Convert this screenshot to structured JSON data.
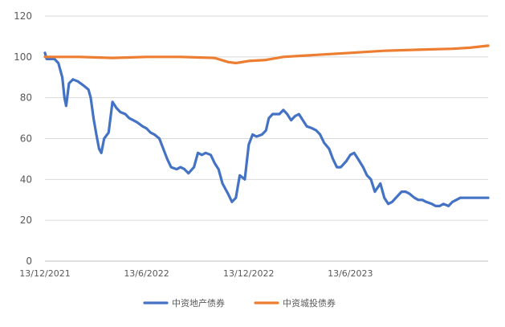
{
  "chart_data": {
    "type": "line",
    "title": "",
    "xlabel": "",
    "ylabel": "",
    "x_ticks": [
      "13/12/2021",
      "13/6/2022",
      "13/12/2022",
      "13/6/2023"
    ],
    "x_range": [
      "2021-12-13",
      "2024-02-15"
    ],
    "y_ticks": [
      0,
      20,
      40,
      60,
      80,
      100,
      120
    ],
    "ylim": [
      0,
      120
    ],
    "grid": "horizontal",
    "legend_position": "bottom",
    "series": [
      {
        "name": "中资地产债券",
        "color": "#4472C4",
        "points": [
          [
            "2021-12-13",
            102
          ],
          [
            "2021-12-16",
            99
          ],
          [
            "2021-12-30",
            99
          ],
          [
            "2022-01-06",
            97
          ],
          [
            "2022-01-13",
            90
          ],
          [
            "2022-01-17",
            80
          ],
          [
            "2022-01-20",
            76
          ],
          [
            "2022-01-25",
            87
          ],
          [
            "2022-02-01",
            89
          ],
          [
            "2022-02-10",
            88
          ],
          [
            "2022-02-20",
            86
          ],
          [
            "2022-03-01",
            84
          ],
          [
            "2022-03-05",
            80
          ],
          [
            "2022-03-10",
            70
          ],
          [
            "2022-03-15",
            62
          ],
          [
            "2022-03-20",
            55
          ],
          [
            "2022-03-24",
            53
          ],
          [
            "2022-03-29",
            60
          ],
          [
            "2022-04-06",
            63
          ],
          [
            "2022-04-13",
            78
          ],
          [
            "2022-04-20",
            75
          ],
          [
            "2022-04-27",
            73
          ],
          [
            "2022-05-06",
            72
          ],
          [
            "2022-05-13",
            70
          ],
          [
            "2022-05-20",
            69
          ],
          [
            "2022-05-27",
            68
          ],
          [
            "2022-06-06",
            66
          ],
          [
            "2022-06-13",
            65
          ],
          [
            "2022-06-20",
            63
          ],
          [
            "2022-06-27",
            62
          ],
          [
            "2022-07-06",
            60
          ],
          [
            "2022-07-13",
            55
          ],
          [
            "2022-07-20",
            50
          ],
          [
            "2022-07-27",
            46
          ],
          [
            "2022-08-06",
            45
          ],
          [
            "2022-08-13",
            46
          ],
          [
            "2022-08-20",
            45
          ],
          [
            "2022-08-27",
            43
          ],
          [
            "2022-09-06",
            46
          ],
          [
            "2022-09-13",
            53
          ],
          [
            "2022-09-20",
            52
          ],
          [
            "2022-09-27",
            53
          ],
          [
            "2022-10-06",
            52
          ],
          [
            "2022-10-13",
            48
          ],
          [
            "2022-10-20",
            45
          ],
          [
            "2022-10-27",
            38
          ],
          [
            "2022-11-06",
            33
          ],
          [
            "2022-11-13",
            29
          ],
          [
            "2022-11-20",
            31
          ],
          [
            "2022-11-27",
            42
          ],
          [
            "2022-12-06",
            40
          ],
          [
            "2022-12-13",
            57
          ],
          [
            "2022-12-20",
            62
          ],
          [
            "2022-12-27",
            61
          ],
          [
            "2023-01-06",
            62
          ],
          [
            "2023-01-13",
            64
          ],
          [
            "2023-01-18",
            70
          ],
          [
            "2023-01-25",
            72
          ],
          [
            "2023-02-06",
            72
          ],
          [
            "2023-02-13",
            74
          ],
          [
            "2023-02-20",
            72
          ],
          [
            "2023-02-27",
            69
          ],
          [
            "2023-03-06",
            71
          ],
          [
            "2023-03-13",
            72
          ],
          [
            "2023-03-20",
            69
          ],
          [
            "2023-03-27",
            66
          ],
          [
            "2023-04-06",
            65
          ],
          [
            "2023-04-13",
            64
          ],
          [
            "2023-04-20",
            62
          ],
          [
            "2023-04-27",
            58
          ],
          [
            "2023-05-06",
            55
          ],
          [
            "2023-05-13",
            50
          ],
          [
            "2023-05-20",
            46
          ],
          [
            "2023-05-27",
            46
          ],
          [
            "2023-06-06",
            49
          ],
          [
            "2023-06-13",
            52
          ],
          [
            "2023-06-20",
            53
          ],
          [
            "2023-06-27",
            50
          ],
          [
            "2023-07-06",
            46
          ],
          [
            "2023-07-13",
            42
          ],
          [
            "2023-07-20",
            40
          ],
          [
            "2023-07-27",
            34
          ],
          [
            "2023-08-06",
            38
          ],
          [
            "2023-08-13",
            31
          ],
          [
            "2023-08-20",
            28
          ],
          [
            "2023-08-27",
            29
          ],
          [
            "2023-09-06",
            32
          ],
          [
            "2023-09-13",
            34
          ],
          [
            "2023-09-20",
            34
          ],
          [
            "2023-09-27",
            33
          ],
          [
            "2023-10-06",
            31
          ],
          [
            "2023-10-13",
            30
          ],
          [
            "2023-10-20",
            30
          ],
          [
            "2023-10-27",
            29
          ],
          [
            "2023-11-06",
            28
          ],
          [
            "2023-11-13",
            27
          ],
          [
            "2023-11-20",
            27
          ],
          [
            "2023-11-27",
            28
          ],
          [
            "2023-12-06",
            27
          ],
          [
            "2023-12-13",
            29
          ],
          [
            "2023-12-20",
            30
          ],
          [
            "2023-12-27",
            31
          ],
          [
            "2024-01-06",
            31
          ],
          [
            "2024-02-15",
            31
          ]
        ]
      },
      {
        "name": "中资城投债券",
        "color": "#ED7D31",
        "points": [
          [
            "2021-12-13",
            100
          ],
          [
            "2022-02-13",
            100
          ],
          [
            "2022-04-13",
            99.5
          ],
          [
            "2022-06-13",
            100
          ],
          [
            "2022-08-13",
            100
          ],
          [
            "2022-10-13",
            99.5
          ],
          [
            "2022-11-06",
            97.5
          ],
          [
            "2022-11-20",
            97
          ],
          [
            "2022-12-13",
            98
          ],
          [
            "2023-01-13",
            98.5
          ],
          [
            "2023-02-13",
            100
          ],
          [
            "2023-04-13",
            101
          ],
          [
            "2023-06-13",
            102
          ],
          [
            "2023-08-13",
            103
          ],
          [
            "2023-10-13",
            103.5
          ],
          [
            "2023-12-13",
            104
          ],
          [
            "2024-01-13",
            104.5
          ],
          [
            "2024-02-15",
            105.5
          ]
        ]
      }
    ]
  }
}
